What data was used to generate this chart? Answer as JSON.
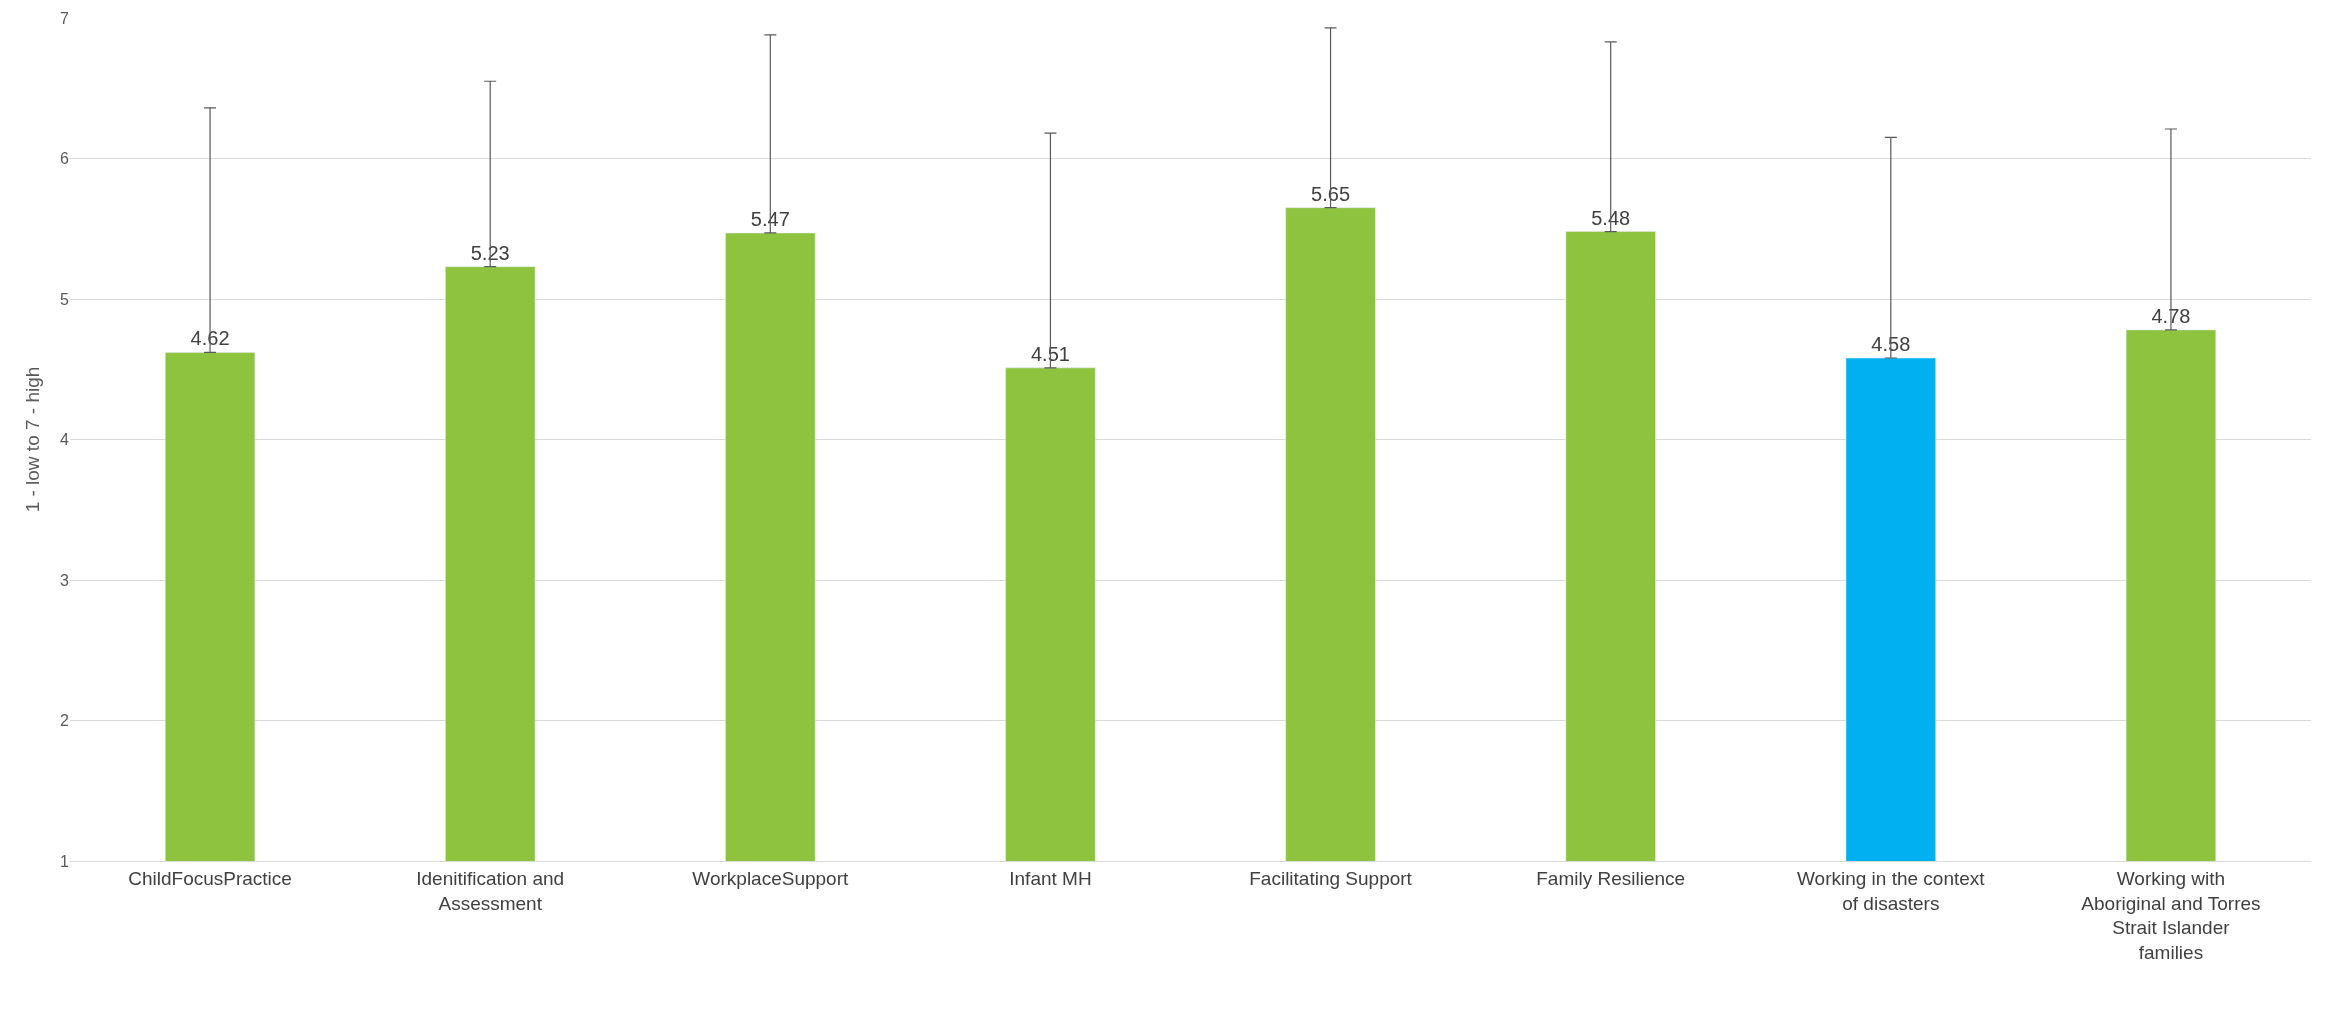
{
  "chart_data": {
    "type": "bar",
    "ylabel": "1 - low to 7 - high",
    "categories": [
      "ChildFocusPractice",
      "Idenitification and Assessment",
      "WorkplaceSupport",
      "Infant MH",
      "Facilitating Support",
      "Family Resilience",
      "Working in the context of disasters",
      "Working with Aboriginal and Torres Strait Islander families"
    ],
    "values": [
      4.62,
      5.23,
      5.47,
      4.51,
      5.65,
      5.48,
      4.58,
      4.78
    ],
    "colors": [
      "#8dc33f",
      "#8dc33f",
      "#8dc33f",
      "#8dc33f",
      "#8dc33f",
      "#8dc33f",
      "#00b0f0",
      "#8dc33f"
    ],
    "errors": [
      [
        4.62,
        6.36
      ],
      [
        5.23,
        6.55
      ],
      [
        5.47,
        6.88
      ],
      [
        4.51,
        6.18
      ],
      [
        5.65,
        6.93
      ],
      [
        5.48,
        6.83
      ],
      [
        4.58,
        6.15
      ],
      [
        4.78,
        6.21
      ]
    ],
    "ylim": [
      1,
      7
    ],
    "yticks": [
      1,
      2,
      3,
      4,
      5,
      6,
      7
    ],
    "grid": "y",
    "data_labels": true
  }
}
